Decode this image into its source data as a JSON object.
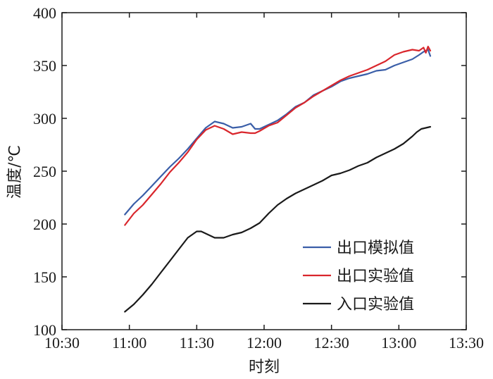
{
  "chart_data": {
    "type": "line",
    "title": "",
    "xlabel": "时刻",
    "ylabel": "温度/℃",
    "x_ticks": [
      "10:30",
      "11:00",
      "11:30",
      "12:00",
      "12:30",
      "13:00",
      "13:30"
    ],
    "y_ticks": [
      100,
      150,
      200,
      250,
      300,
      350,
      400
    ],
    "xlim": [
      "10:30",
      "13:30"
    ],
    "ylim": [
      100,
      400
    ],
    "grid": false,
    "legend_position": "bottom-right",
    "series": [
      {
        "name": "出口模拟值",
        "color": "#3a5ea8",
        "x": [
          "10:58",
          "11:02",
          "11:06",
          "11:10",
          "11:14",
          "11:18",
          "11:22",
          "11:26",
          "11:30",
          "11:34",
          "11:38",
          "11:42",
          "11:46",
          "11:50",
          "11:54",
          "11:56",
          "11:58",
          "12:02",
          "12:06",
          "12:10",
          "12:14",
          "12:18",
          "12:22",
          "12:26",
          "12:30",
          "12:34",
          "12:38",
          "12:42",
          "12:46",
          "12:50",
          "12:54",
          "12:58",
          "13:02",
          "13:06",
          "13:09",
          "13:11",
          "13:13",
          "13:14"
        ],
        "y": [
          209,
          219,
          227,
          236,
          245,
          254,
          262,
          271,
          281,
          291,
          297,
          295,
          291,
          292,
          295,
          290,
          290,
          294,
          298,
          304,
          311,
          315,
          322,
          326,
          330,
          335,
          338,
          340,
          342,
          345,
          346,
          350,
          353,
          356,
          360,
          363,
          365,
          359
        ]
      },
      {
        "name": "出口实验值",
        "color": "#d9262c",
        "x": [
          "10:58",
          "11:02",
          "11:06",
          "11:10",
          "11:14",
          "11:18",
          "11:22",
          "11:26",
          "11:30",
          "11:34",
          "11:38",
          "11:42",
          "11:46",
          "11:50",
          "11:54",
          "11:56",
          "11:58",
          "12:02",
          "12:06",
          "12:10",
          "12:14",
          "12:18",
          "12:22",
          "12:26",
          "12:30",
          "12:34",
          "12:38",
          "12:42",
          "12:46",
          "12:50",
          "12:54",
          "12:58",
          "13:02",
          "13:06",
          "13:09",
          "13:11",
          "13:12",
          "13:13",
          "13:14"
        ],
        "y": [
          199,
          210,
          218,
          228,
          238,
          249,
          258,
          268,
          280,
          289,
          293,
          290,
          285,
          287,
          286,
          286,
          288,
          293,
          296,
          303,
          310,
          315,
          321,
          326,
          331,
          336,
          340,
          343,
          346,
          350,
          354,
          360,
          363,
          365,
          364,
          367,
          362,
          368,
          364
        ]
      },
      {
        "name": "入口实验值",
        "color": "#1a1a1a",
        "x": [
          "10:58",
          "11:02",
          "11:06",
          "11:10",
          "11:14",
          "11:18",
          "11:22",
          "11:26",
          "11:30",
          "11:32",
          "11:34",
          "11:38",
          "11:42",
          "11:46",
          "11:50",
          "11:54",
          "11:58",
          "12:02",
          "12:06",
          "12:10",
          "12:14",
          "12:18",
          "12:22",
          "12:26",
          "12:30",
          "12:34",
          "12:38",
          "12:42",
          "12:46",
          "12:50",
          "12:54",
          "12:58",
          "13:02",
          "13:06",
          "13:08",
          "13:10",
          "13:12",
          "13:14"
        ],
        "y": [
          117,
          124,
          133,
          143,
          154,
          165,
          176,
          187,
          193,
          193,
          191,
          187,
          187,
          190,
          192,
          196,
          201,
          210,
          218,
          224,
          229,
          233,
          237,
          241,
          246,
          248,
          251,
          255,
          258,
          263,
          267,
          271,
          276,
          283,
          287,
          290,
          291,
          292
        ]
      }
    ]
  }
}
